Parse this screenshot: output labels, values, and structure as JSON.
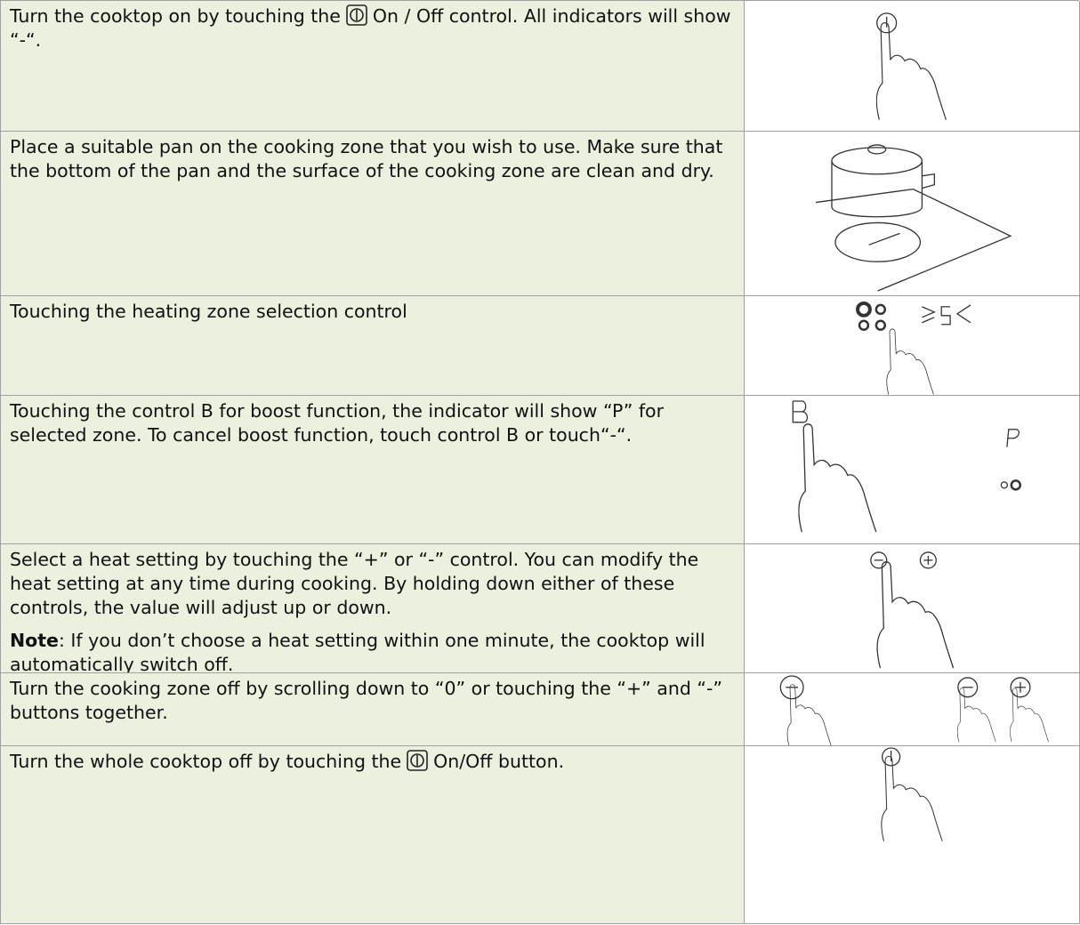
{
  "rows": [
    {
      "parts": [
        "Turn the cooktop on by touching the",
        "On / Off control. All indicators will show “-“."
      ]
    },
    {
      "parts": [
        "Place a suitable pan on the cooking zone that you wish to use. Make sure that the bottom of the pan and the surface of the cooking zone are clean and dry."
      ]
    },
    {
      "parts": [
        "Touching the heating zone selection control"
      ]
    },
    {
      "parts": [
        "Touching the control B for boost function, the indicator will show “P” for selected zone. To cancel boost function, touch control B or touch“-“."
      ]
    },
    {
      "parts": [
        "Select a heat setting by touching the “+” or “-” control. You can modify the heat setting at any time during cooking. By holding down either of these controls, the value will adjust up or down."
      ],
      "note": {
        "label": "Note",
        "text": ": If you don’t choose a heat setting within one minute, the cooktop will automatically switch off."
      }
    },
    {
      "parts": [
        "Turn the cooking zone off by scrolling down to “0” or touching the “+” and “-” buttons together."
      ]
    },
    {
      "parts": [
        "Turn the whole cooktop off by touching the",
        "On/Off button."
      ]
    }
  ]
}
